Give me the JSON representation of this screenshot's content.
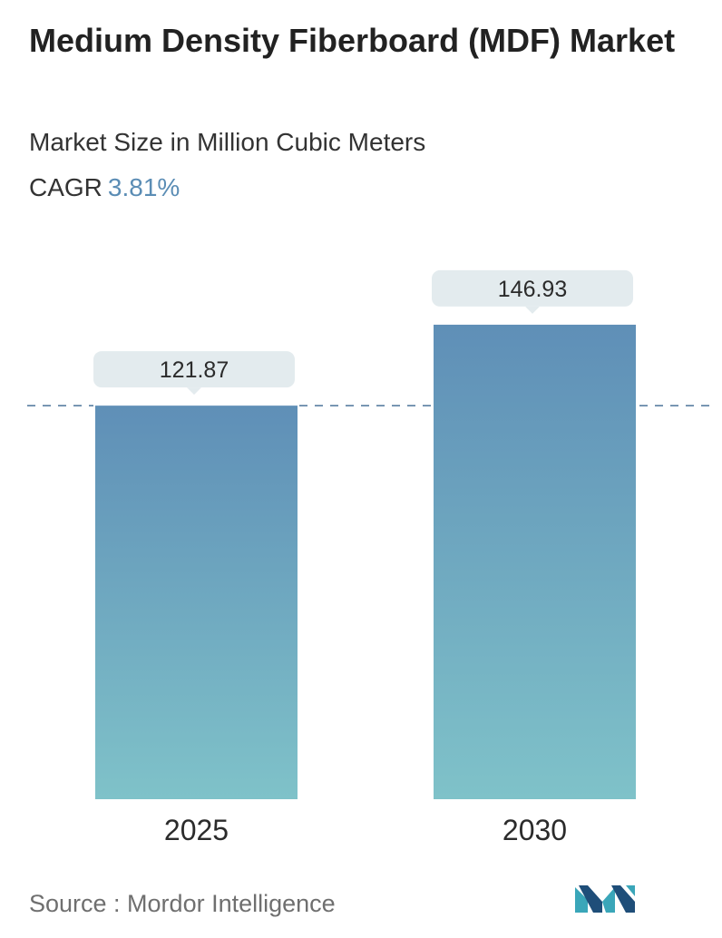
{
  "chart_data": {
    "type": "bar",
    "title": "Medium Density Fiberboard (MDF) Market",
    "subtitle": "Market Size in Million Cubic Meters",
    "cagr_label": "CAGR",
    "cagr_value": "3.81%",
    "categories": [
      "2025",
      "2030"
    ],
    "values": [
      121.87,
      146.93
    ],
    "value_labels": [
      "121.87",
      "146.93"
    ],
    "reference_line": 121.87,
    "colors": {
      "bar_top": "#5f8fb7",
      "bar_bottom": "#7fc2c9",
      "label_bg": "#e3ebee",
      "dashed_line": "#5a7fa2",
      "text": "#2b2b2b"
    }
  },
  "footer": {
    "source_text": "Source :  Mordor Intelligence",
    "logo_icon": "mordor-intelligence-logo-icon"
  }
}
